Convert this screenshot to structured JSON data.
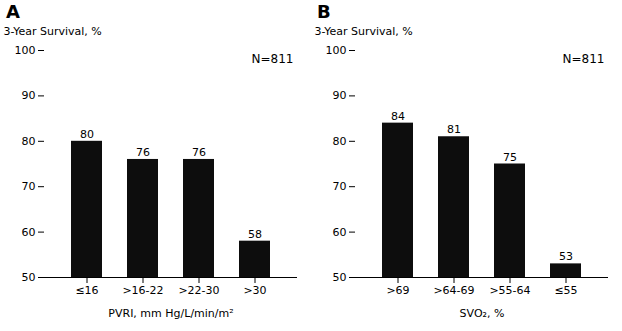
{
  "chart_data": [
    {
      "type": "bar",
      "title": "A",
      "categories": [
        "≤16",
        ">16-22",
        ">22-30",
        ">30"
      ],
      "values": [
        80,
        76,
        76,
        58
      ],
      "xlabel": "PVRI, mm Hg/L/min/m²",
      "ylabel": "3-Year Survival, %",
      "annotation": "N=811",
      "color": "#0d0d0d",
      "ylim": [
        50,
        100
      ],
      "yticks": [
        50,
        60,
        70,
        80,
        90,
        100
      ],
      "data_labels": true
    },
    {
      "type": "bar",
      "title": "B",
      "categories": [
        ">69",
        ">64-69",
        ">55-64",
        "≤55"
      ],
      "values": [
        84,
        81,
        75,
        53
      ],
      "xlabel": "SVO₂, %",
      "ylabel": "3-Year Survival, %",
      "annotation": "N=811",
      "color": "#0d0d0d",
      "ylim": [
        50,
        100
      ],
      "yticks": [
        50,
        60,
        70,
        80,
        90,
        100
      ],
      "data_labels": true
    }
  ]
}
